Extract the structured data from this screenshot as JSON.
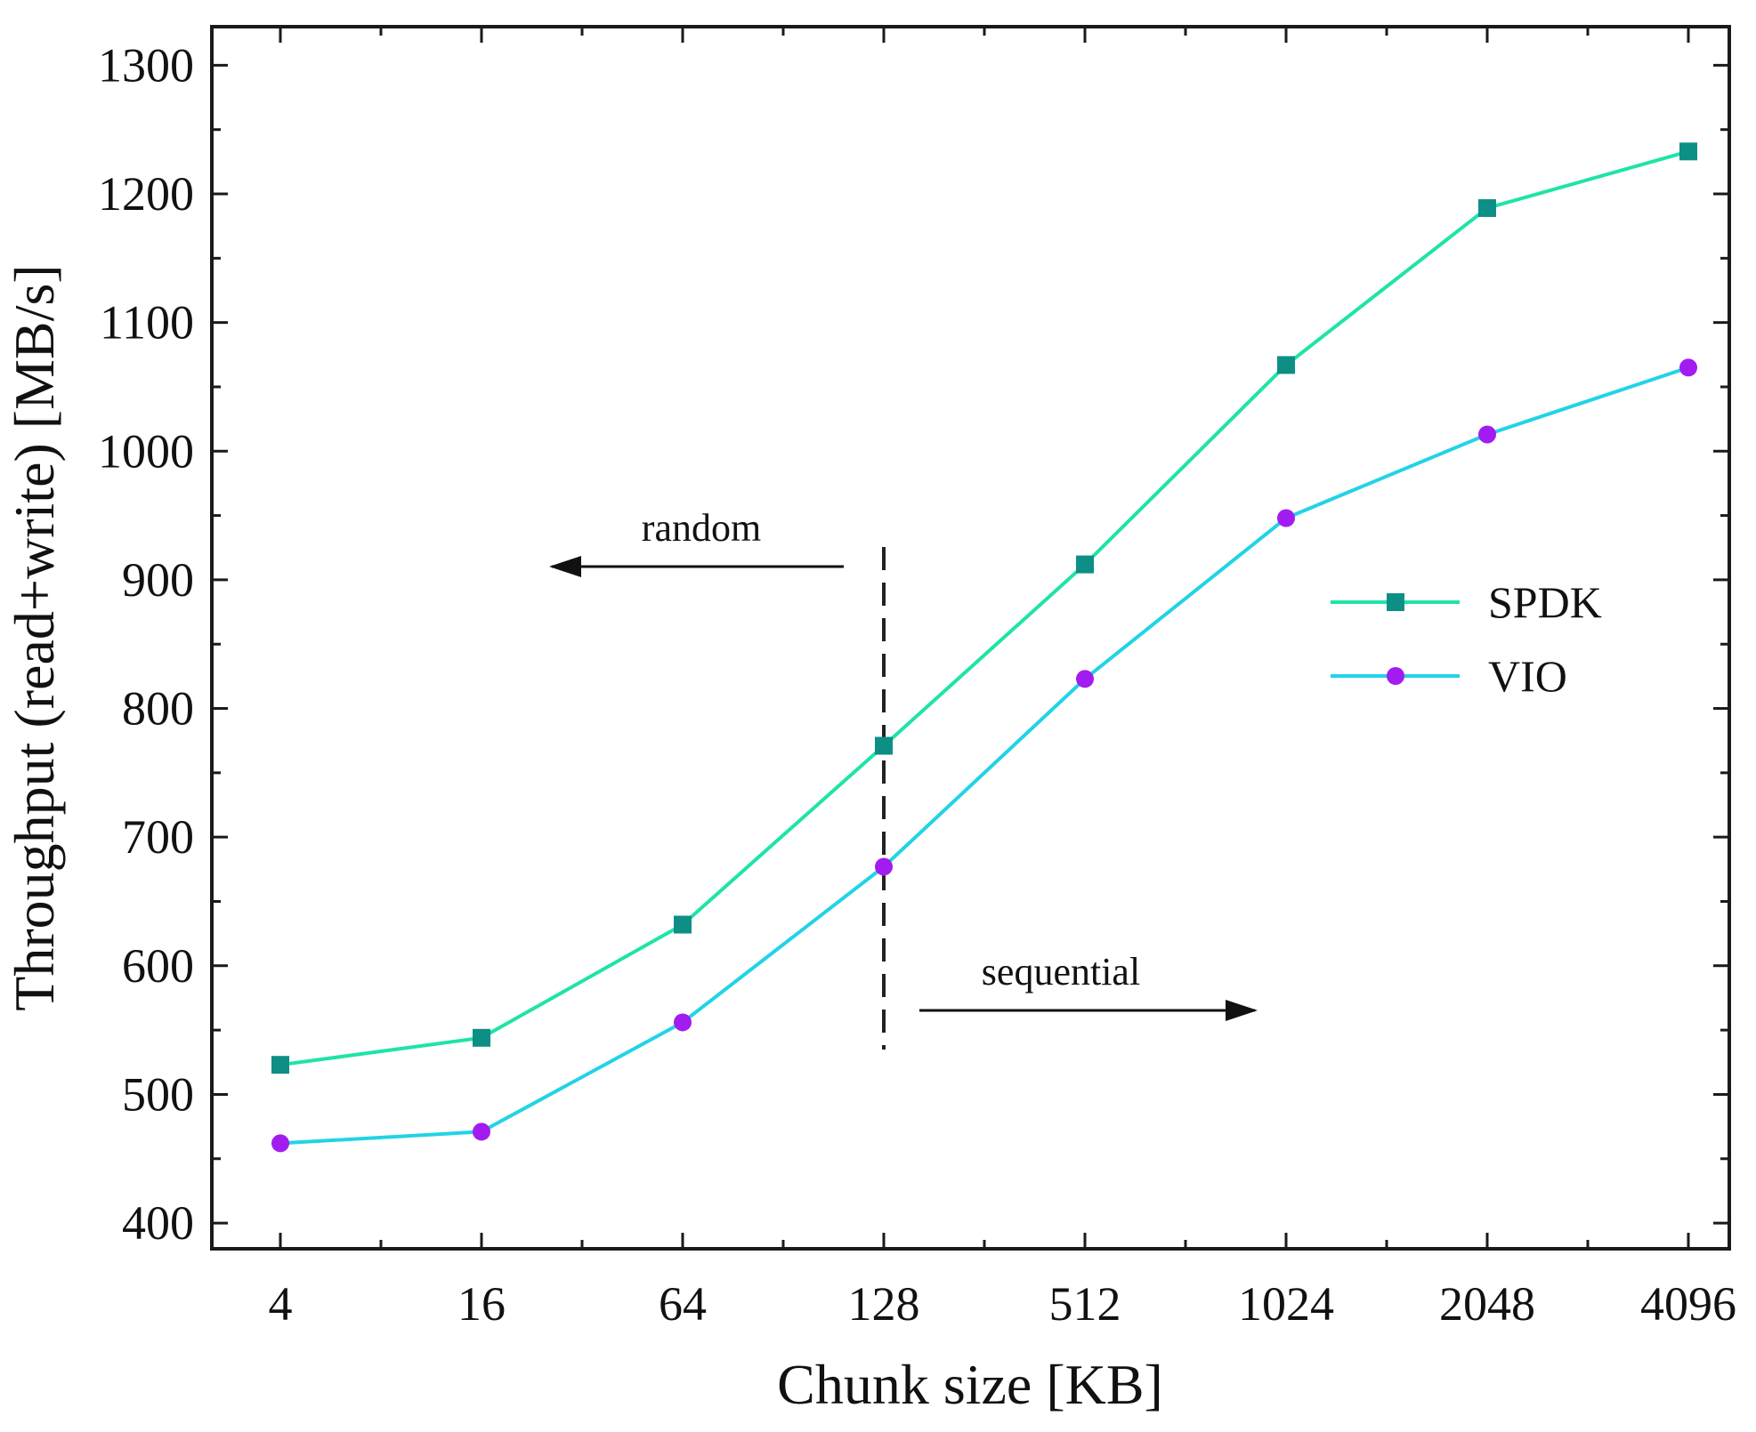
{
  "chart_data": {
    "type": "line",
    "title": "",
    "xlabel": "Chunk size [KB]",
    "ylabel": "Throughput (read+write) [MB/s]",
    "categories": [
      "4",
      "16",
      "64",
      "128",
      "512",
      "1024",
      "2048",
      "4096"
    ],
    "ylim": [
      380,
      1330
    ],
    "yticks": [
      400,
      500,
      600,
      700,
      800,
      900,
      1000,
      1100,
      1200,
      1300
    ],
    "grid": false,
    "legend_position": "right",
    "series": [
      {
        "name": "SPDK",
        "marker": "square",
        "line_color": "#1fe3a8",
        "marker_color": "#0e8f86",
        "values": [
          523,
          544,
          632,
          771,
          912,
          1067,
          1189,
          1233
        ]
      },
      {
        "name": "VIO",
        "marker": "circle",
        "line_color": "#22d3e6",
        "marker_color": "#a21cf0",
        "values": [
          462,
          471,
          556,
          677,
          823,
          948,
          1013,
          1065
        ]
      }
    ],
    "annotations": {
      "divider_at": "128",
      "random_label": "random",
      "sequential_label": "sequential"
    }
  }
}
